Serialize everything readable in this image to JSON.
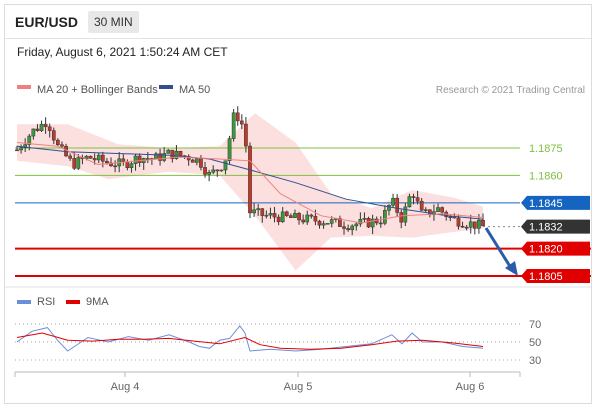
{
  "header": {
    "symbol": "EUR/USD",
    "timeframe": "30 MIN"
  },
  "datetime": "Friday, August 6, 2021 1:50:24 AM CET",
  "legend": {
    "ma20_label": "MA 20 + Bollinger Bands",
    "ma50_label": "MA 50",
    "credit": "Research © 2021 Trading Central"
  },
  "rsi_legend": {
    "rsi_label": "RSI",
    "ma_label": "9MA"
  },
  "colors": {
    "ma20": "#f08080",
    "ma50": "#2f4f8f",
    "band": "#fbd6d6",
    "support": "#e00000",
    "resistance": "#7fbf3f",
    "current": "#333333",
    "pivot": "#1565c0",
    "rsi": "#6a8fd8",
    "rsi_ma": "#e00000",
    "arrow": "#2a5ca8"
  },
  "chart_data": [
    {
      "type": "candlestick",
      "title": "EUR/USD 30 MIN",
      "x_tick_labels": [
        "Aug 4",
        "Aug 5",
        "Aug 6"
      ],
      "ylim": [
        1.18,
        1.1895
      ],
      "levels": [
        {
          "value": 1.1875,
          "label": "1.1875",
          "kind": "resistance"
        },
        {
          "value": 1.186,
          "label": "1.1860",
          "kind": "resistance"
        },
        {
          "value": 1.1845,
          "label": "1.1845",
          "kind": "pivot"
        },
        {
          "value": 1.1832,
          "label": "1.1832",
          "kind": "current"
        },
        {
          "value": 1.182,
          "label": "1.1820",
          "kind": "support"
        },
        {
          "value": 1.1805,
          "label": "1.1805",
          "kind": "support"
        }
      ],
      "price_path": [
        [
          0,
          1.1874
        ],
        [
          3,
          1.1884
        ],
        [
          6,
          1.189
        ],
        [
          8,
          1.1876
        ],
        [
          11,
          1.1866
        ],
        [
          14,
          1.187
        ],
        [
          18,
          1.1867
        ],
        [
          21,
          1.1866
        ],
        [
          24,
          1.187
        ],
        [
          27,
          1.1869
        ],
        [
          30,
          1.1872
        ],
        [
          34,
          1.187
        ],
        [
          36,
          1.1868
        ],
        [
          38,
          1.186
        ],
        [
          41,
          1.1867
        ],
        [
          43,
          1.1895
        ],
        [
          45,
          1.1885
        ],
        [
          46,
          1.184
        ],
        [
          49,
          1.1838
        ],
        [
          53,
          1.1837
        ],
        [
          57,
          1.1836
        ],
        [
          61,
          1.1835
        ],
        [
          65,
          1.1833
        ],
        [
          69,
          1.1834
        ],
        [
          72,
          1.1836
        ],
        [
          74,
          1.1846
        ],
        [
          76,
          1.1836
        ],
        [
          78,
          1.1852
        ],
        [
          80,
          1.1838
        ],
        [
          83,
          1.1842
        ],
        [
          86,
          1.1836
        ],
        [
          89,
          1.1834
        ],
        [
          92,
          1.1832
        ]
      ],
      "ma50_path": [
        [
          0,
          1.1876
        ],
        [
          10,
          1.1873
        ],
        [
          20,
          1.1872
        ],
        [
          30,
          1.1871
        ],
        [
          38,
          1.1869
        ],
        [
          46,
          1.1863
        ],
        [
          55,
          1.1856
        ],
        [
          65,
          1.1847
        ],
        [
          75,
          1.1842
        ],
        [
          85,
          1.1838
        ],
        [
          92,
          1.1836
        ]
      ],
      "ma20_path": [
        [
          0,
          1.1878
        ],
        [
          8,
          1.1876
        ],
        [
          16,
          1.1866
        ],
        [
          24,
          1.1868
        ],
        [
          32,
          1.187
        ],
        [
          40,
          1.1869
        ],
        [
          46,
          1.1868
        ],
        [
          52,
          1.185
        ],
        [
          60,
          1.1838
        ],
        [
          68,
          1.1834
        ],
        [
          76,
          1.1838
        ],
        [
          84,
          1.1839
        ],
        [
          92,
          1.1837
        ]
      ],
      "band_upper": [
        [
          0,
          1.1888
        ],
        [
          10,
          1.1888
        ],
        [
          20,
          1.1877
        ],
        [
          30,
          1.1875
        ],
        [
          40,
          1.1876
        ],
        [
          47,
          1.1894
        ],
        [
          55,
          1.1878
        ],
        [
          62,
          1.185
        ],
        [
          70,
          1.1842
        ],
        [
          78,
          1.1852
        ],
        [
          86,
          1.1848
        ],
        [
          92,
          1.1843
        ]
      ],
      "band_lower": [
        [
          0,
          1.1868
        ],
        [
          10,
          1.1865
        ],
        [
          18,
          1.1858
        ],
        [
          30,
          1.1862
        ],
        [
          40,
          1.186
        ],
        [
          47,
          1.1838
        ],
        [
          55,
          1.1808
        ],
        [
          62,
          1.1826
        ],
        [
          70,
          1.1827
        ],
        [
          78,
          1.1826
        ],
        [
          86,
          1.1829
        ],
        [
          92,
          1.1831
        ]
      ]
    },
    {
      "type": "line",
      "title": "RSI",
      "ylim": [
        20,
        80
      ],
      "y_tick_labels": [
        "70",
        "50",
        "30"
      ],
      "series": [
        {
          "name": "RSI",
          "values": [
            [
              0,
              50
            ],
            [
              3,
              62
            ],
            [
              6,
              66
            ],
            [
              8,
              52
            ],
            [
              10,
              40
            ],
            [
              14,
              55
            ],
            [
              18,
              50
            ],
            [
              22,
              56
            ],
            [
              26,
              52
            ],
            [
              30,
              58
            ],
            [
              34,
              50
            ],
            [
              36,
              45
            ],
            [
              38,
              43
            ],
            [
              40,
              52
            ],
            [
              42,
              54
            ],
            [
              44,
              68
            ],
            [
              45,
              60
            ],
            [
              46,
              40
            ],
            [
              50,
              42
            ],
            [
              55,
              40
            ],
            [
              60,
              42
            ],
            [
              65,
              45
            ],
            [
              70,
              48
            ],
            [
              74,
              58
            ],
            [
              76,
              48
            ],
            [
              78,
              60
            ],
            [
              80,
              50
            ],
            [
              84,
              50
            ],
            [
              88,
              45
            ],
            [
              92,
              43
            ]
          ]
        },
        {
          "name": "9MA",
          "values": [
            [
              0,
              55
            ],
            [
              5,
              60
            ],
            [
              10,
              52
            ],
            [
              15,
              51
            ],
            [
              20,
              53
            ],
            [
              25,
              53
            ],
            [
              30,
              54
            ],
            [
              35,
              51
            ],
            [
              40,
              48
            ],
            [
              45,
              55
            ],
            [
              48,
              47
            ],
            [
              52,
              43
            ],
            [
              58,
              42
            ],
            [
              64,
              43
            ],
            [
              70,
              47
            ],
            [
              75,
              51
            ],
            [
              80,
              52
            ],
            [
              86,
              49
            ],
            [
              92,
              45
            ]
          ]
        }
      ]
    }
  ]
}
